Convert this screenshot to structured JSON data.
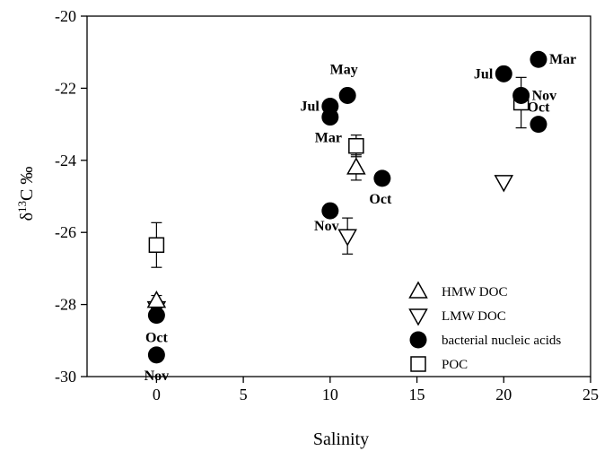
{
  "chart_data": {
    "type": "scatter",
    "title": "",
    "xlabel": "Salinity",
    "ylabel_parts": {
      "delta": "δ",
      "sup": "13",
      "rest": "C ‰"
    },
    "xlim": [
      -4,
      25
    ],
    "ylim": [
      -30,
      -20
    ],
    "xticks": [
      0,
      5,
      10,
      15,
      20,
      25
    ],
    "yticks": [
      -30,
      -28,
      -26,
      -24,
      -22,
      -20
    ],
    "grid": false,
    "legend_position": "bottom-right",
    "series": [
      {
        "name": "HMW DOC",
        "marker": "triangle-up",
        "points": [
          {
            "x": 0,
            "y": -27.9,
            "err": 0.15
          },
          {
            "x": 11.5,
            "y": -24.2,
            "err": 0.35
          }
        ]
      },
      {
        "name": "LMW DOC",
        "marker": "triangle-down",
        "points": [
          {
            "x": 0,
            "y": -28.1,
            "err": 0.15
          },
          {
            "x": 11,
            "y": -26.1,
            "err": 0.5
          },
          {
            "x": 20,
            "y": -24.6,
            "err": 0
          }
        ]
      },
      {
        "name": "bacterial nucleic acids",
        "marker": "circle",
        "points": [
          {
            "x": 0,
            "y": -28.3,
            "label": "Oct"
          },
          {
            "x": 0,
            "y": -29.4,
            "label": "Nov"
          },
          {
            "x": 10,
            "y": -22.5,
            "label": "Jul"
          },
          {
            "x": 11,
            "y": -22.2,
            "label": "May"
          },
          {
            "x": 10,
            "y": -22.8,
            "label": "Mar"
          },
          {
            "x": 13,
            "y": -24.5,
            "label": "Oct"
          },
          {
            "x": 10,
            "y": -25.4,
            "label": "Nov"
          },
          {
            "x": 20,
            "y": -21.6,
            "label": "Jul"
          },
          {
            "x": 22,
            "y": -21.2,
            "label": "Mar"
          },
          {
            "x": 21,
            "y": -22.2,
            "label": "Nov"
          },
          {
            "x": 22,
            "y": -23.0,
            "label": "Oct"
          }
        ]
      },
      {
        "name": "POC",
        "marker": "square",
        "points": [
          {
            "x": 0,
            "y": -26.35,
            "err": 0.62
          },
          {
            "x": 11.5,
            "y": -23.6,
            "err": 0.3
          },
          {
            "x": 21,
            "y": -22.4,
            "err": 0.7
          }
        ]
      }
    ]
  }
}
